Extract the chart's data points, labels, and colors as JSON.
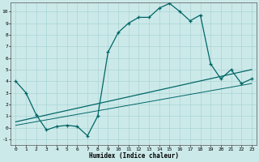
{
  "xlabel": "Humidex (Indice chaleur)",
  "xlim": [
    -0.5,
    23.5
  ],
  "ylim": [
    -1.5,
    10.8
  ],
  "yticks": [
    -1,
    0,
    1,
    2,
    3,
    4,
    5,
    6,
    7,
    8,
    9,
    10
  ],
  "xticks": [
    0,
    1,
    2,
    3,
    4,
    5,
    6,
    7,
    8,
    9,
    10,
    11,
    12,
    13,
    14,
    15,
    16,
    17,
    18,
    19,
    20,
    21,
    22,
    23
  ],
  "bg_color": "#cce9e9",
  "line_color": "#006666",
  "grid_color": "#aad4d4",
  "series1_x": [
    0,
    1,
    2,
    3,
    4,
    5,
    6,
    7,
    8,
    9,
    10,
    11,
    12,
    13,
    14,
    15,
    16,
    17,
    18,
    19,
    20,
    21,
    22,
    23
  ],
  "series1_y": [
    4.0,
    3.0,
    1.1,
    -0.2,
    0.1,
    0.2,
    0.1,
    -0.7,
    1.0,
    6.5,
    8.2,
    9.0,
    9.5,
    9.5,
    10.3,
    10.7,
    10.0,
    9.2,
    9.7,
    5.5,
    4.2,
    5.0,
    3.8,
    4.2
  ],
  "series2_x": [
    0,
    23
  ],
  "series2_y": [
    0.5,
    5.0
  ],
  "series3_x": [
    0,
    23
  ],
  "series3_y": [
    0.2,
    3.8
  ],
  "marker_size": 3.5,
  "lw1": 0.9,
  "lw2": 0.9,
  "lw3": 0.7
}
